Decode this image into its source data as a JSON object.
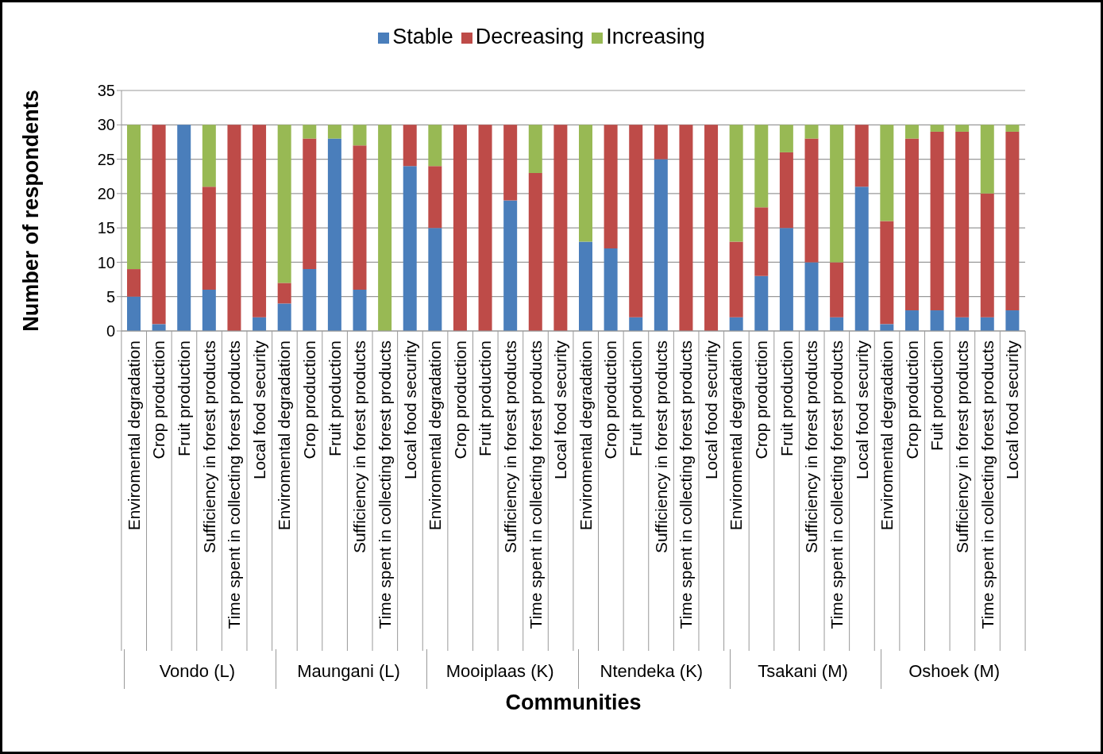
{
  "chart_data": {
    "type": "bar",
    "stacked": true,
    "xlabel": "Communities",
    "ylabel": "Number of respondents",
    "categories": [
      "Enviromental degradation",
      "Crop production",
      "Fruit production",
      "Sufficiency in forest products",
      "Time spent in collecting forest products",
      "Local food security",
      "Enviromental degradation",
      "Crop production",
      "Fruit production",
      "Sufficiency in forest products",
      "Time spent in collecting forest products",
      "Local food security",
      "Enviromental degradation",
      "Crop production",
      "Fruit production",
      "Sufficiency in forest products",
      "Time spent in collecting forest products",
      "Local food security",
      "Enviromental degradation",
      "Crop production",
      "Fruit production",
      "Sufficiency in forest products",
      "Time spent in collecting forest products",
      "Local food security",
      "Enviromental degradation",
      "Crop production",
      "Fruit production",
      "Sufficiency in forest products",
      "Time spent in collecting forest products",
      "Local food security",
      "Enviromental degradation",
      "Crop production",
      "Fuit production",
      "Sufficiency in forest products",
      "Time spent in collecting forest products",
      "Local food security"
    ],
    "series": [
      {
        "name": "Stable",
        "color": "#4a7ebb",
        "values": [
          5,
          1,
          30,
          6,
          0,
          2,
          4,
          9,
          28,
          6,
          0,
          24,
          15,
          0,
          0,
          19,
          0,
          0,
          13,
          12,
          2,
          25,
          0,
          0,
          2,
          8,
          15,
          10,
          2,
          21,
          1,
          3,
          3,
          2,
          2,
          3
        ]
      },
      {
        "name": "Decreasing",
        "color": "#be4b48",
        "values": [
          4,
          29,
          0,
          15,
          30,
          28,
          3,
          19,
          0,
          21,
          0,
          6,
          9,
          30,
          30,
          11,
          23,
          30,
          0,
          18,
          28,
          5,
          30,
          30,
          11,
          10,
          11,
          18,
          8,
          9,
          15,
          25,
          26,
          27,
          18,
          26
        ]
      },
      {
        "name": "Increasing",
        "color": "#98b954",
        "values": [
          21,
          0,
          0,
          9,
          0,
          0,
          23,
          2,
          2,
          3,
          30,
          0,
          6,
          0,
          0,
          0,
          7,
          0,
          17,
          0,
          0,
          0,
          0,
          0,
          17,
          12,
          4,
          2,
          20,
          0,
          14,
          2,
          1,
          1,
          10,
          1
        ]
      }
    ],
    "annotations": [
      "Vondo (L)",
      "Maungani (L)",
      "Mooiplaas (K)",
      "Ntendeka (K)",
      "Tsakani (M)",
      "Oshoek (M)"
    ],
    "ylim": [
      0,
      35
    ],
    "yticks": [
      0,
      5,
      10,
      15,
      20,
      25,
      30,
      35
    ],
    "grid": "y",
    "legend": "top"
  }
}
